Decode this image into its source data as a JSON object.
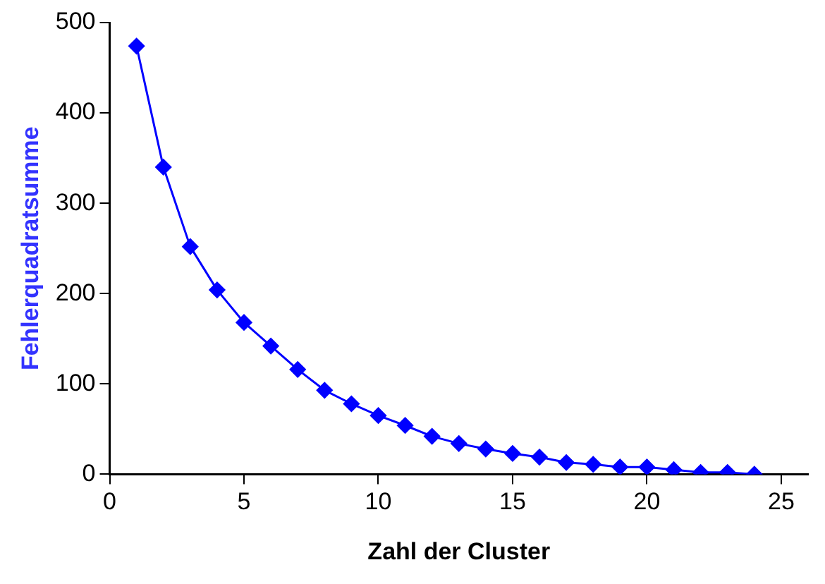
{
  "chart_data": {
    "type": "line",
    "xlabel": "Zahl der Cluster",
    "ylabel": "Fehlerquadratsumme",
    "x": [
      1,
      2,
      3,
      4,
      5,
      6,
      7,
      8,
      9,
      10,
      11,
      12,
      13,
      14,
      15,
      16,
      17,
      18,
      19,
      20,
      21,
      22,
      23,
      24
    ],
    "series": [
      {
        "color": "#0000ff",
        "values": [
          474,
          340,
          252,
          204,
          168,
          142,
          116,
          93,
          78,
          65,
          54,
          42,
          34,
          28,
          23,
          19,
          13,
          11,
          8,
          8,
          5,
          2,
          2,
          0
        ]
      }
    ],
    "xlim": [
      0,
      26
    ],
    "xticks": [
      0,
      5,
      10,
      15,
      20,
      25
    ],
    "ylim": [
      0,
      500
    ],
    "yticks": [
      0,
      100,
      200,
      300,
      400,
      500
    ],
    "grid": false,
    "legend": false,
    "marker": "diamond",
    "line_style": "solid"
  }
}
